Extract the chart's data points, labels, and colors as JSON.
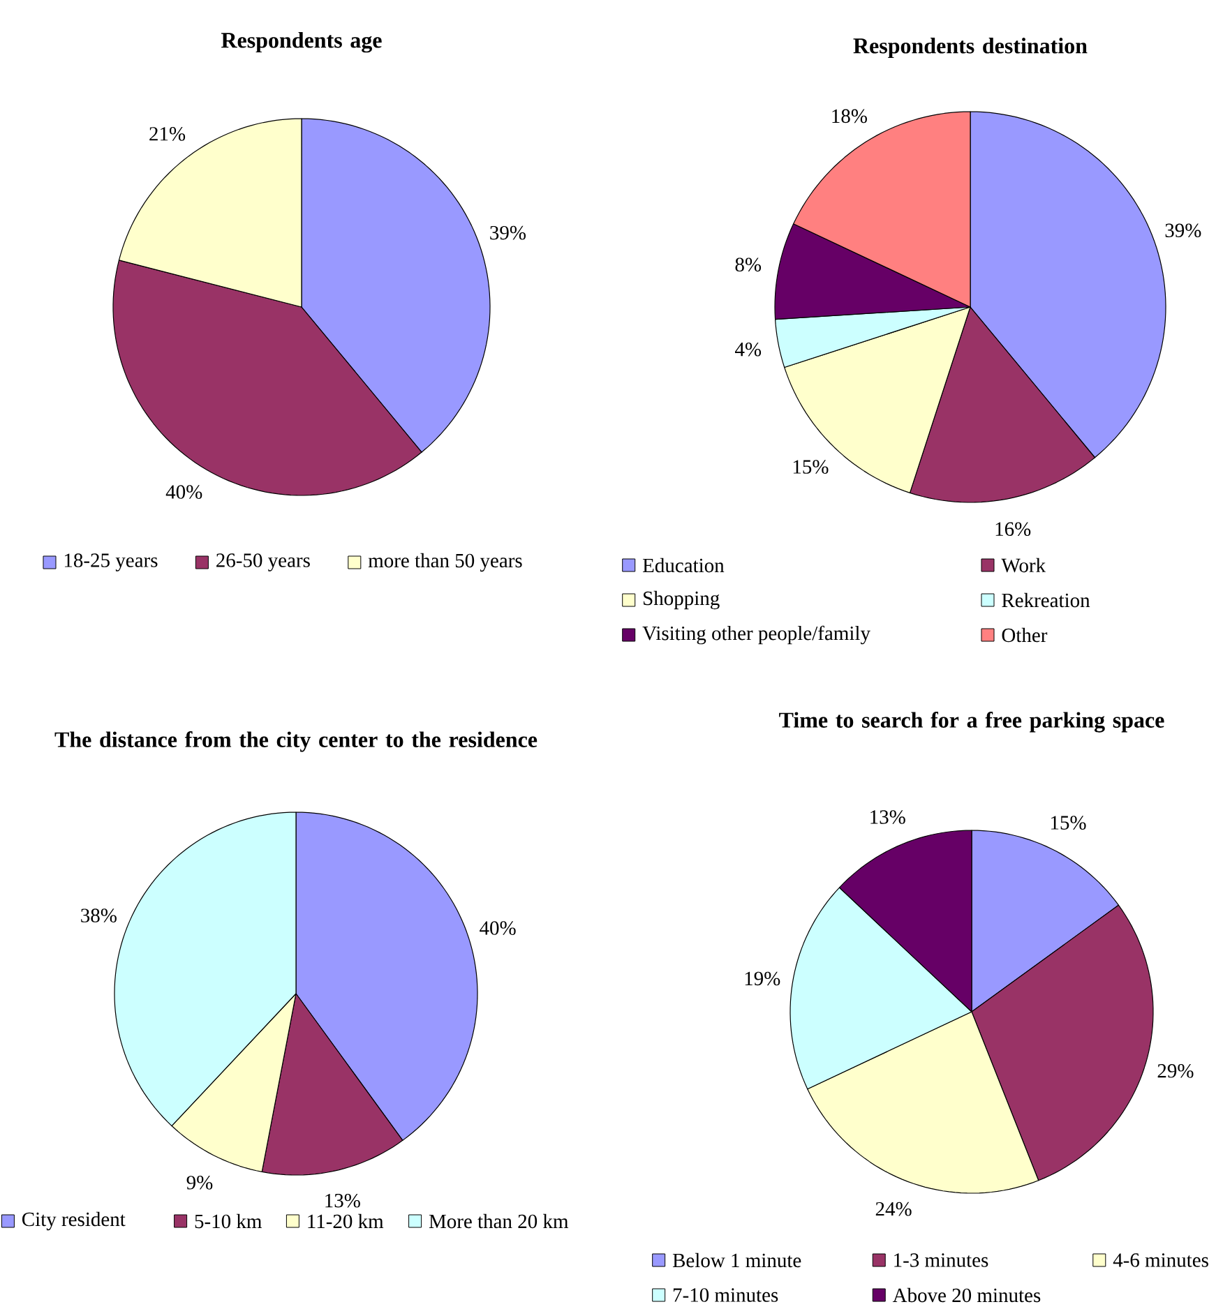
{
  "chart_data": [
    {
      "type": "pie",
      "title": "Respondents age",
      "categories": [
        "18-25 years",
        "26-50 years",
        "more than 50 years"
      ],
      "values": [
        39,
        40,
        21
      ],
      "value_labels": [
        "39%",
        "40%",
        "21%"
      ],
      "colors": [
        "#9999ff",
        "#993366",
        "#ffffcc"
      ],
      "legend": "bottom"
    },
    {
      "type": "pie",
      "title": "Respondents destination",
      "categories": [
        "Education",
        "Work",
        "Shopping",
        "Rekreation",
        "Visiting other people/family",
        "Other"
      ],
      "values": [
        39,
        16,
        15,
        4,
        8,
        18
      ],
      "value_labels": [
        "39%",
        "16%",
        "15%",
        "4%",
        "8%",
        "18%"
      ],
      "colors": [
        "#9999ff",
        "#993366",
        "#ffffcc",
        "#ccffff",
        "#660066",
        "#ff8080"
      ],
      "legend": "bottom"
    },
    {
      "type": "pie",
      "title": "The distance from the city center to the residence",
      "categories": [
        "City resident",
        "5-10 km",
        "11-20 km",
        "More than 20 km"
      ],
      "values": [
        40,
        13,
        9,
        38
      ],
      "value_labels": [
        "40%",
        "13%",
        "9%",
        "38%"
      ],
      "colors": [
        "#9999ff",
        "#993366",
        "#ffffcc",
        "#ccffff"
      ],
      "legend": "bottom"
    },
    {
      "type": "pie",
      "title": "Time to search for a free parking space",
      "categories": [
        "Below 1 minute",
        "1-3 minutes",
        "4-6 minutes",
        "7-10 minutes",
        "Above 20 minutes"
      ],
      "values": [
        15,
        29,
        24,
        19,
        13
      ],
      "value_labels": [
        "15%",
        "29%",
        "24%",
        "19%",
        "13%"
      ],
      "colors": [
        "#9999ff",
        "#993366",
        "#ffffcc",
        "#ccffff",
        "#660066"
      ],
      "legend": "bottom"
    }
  ]
}
